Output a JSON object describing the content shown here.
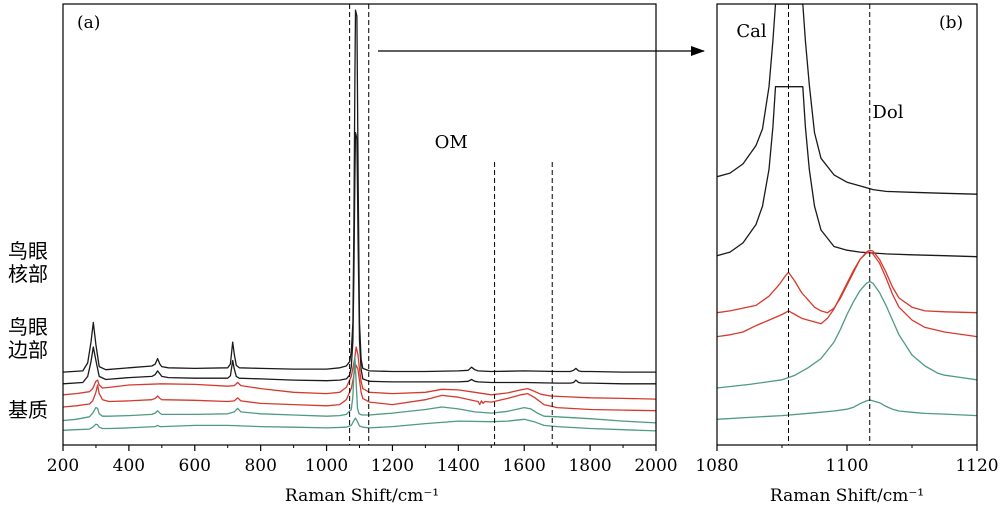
{
  "colors": {
    "core": "#1a1a1a",
    "rim": "#d63a2e",
    "matrix": "#4e9a84",
    "frame": "#000000",
    "reference_line": "#000000"
  },
  "row_labels": [
    {
      "line1": "鸟眼",
      "line2": "核部"
    },
    {
      "line1": "鸟眼",
      "line2": "边部"
    },
    {
      "line1": "基质",
      "line2": ""
    }
  ],
  "chart_data": [
    {
      "panel": "(a)",
      "type": "line",
      "xlabel": "Raman Shift/cm⁻¹",
      "ylabel": "",
      "xlim": [
        200,
        2000
      ],
      "x_ticks": [
        200,
        400,
        600,
        800,
        1000,
        1200,
        1400,
        1600,
        1800,
        2000
      ],
      "y_ticks": [],
      "grid": false,
      "reference_lines": [
        1070,
        1128,
        1510,
        1685
      ],
      "annotations": [
        {
          "text": "OM",
          "x": 1600
        }
      ],
      "series_style": [
        "core",
        "core",
        "rim",
        "rim",
        "matrix",
        "matrix"
      ],
      "series": [
        {
          "x": [
            200,
            260,
            275,
            285,
            292,
            300,
            310,
            330,
            400,
            470,
            480,
            487,
            494,
            500,
            520,
            600,
            700,
            708,
            715,
            720,
            726,
            735,
            800,
            900,
            1000,
            1040,
            1060,
            1070,
            1075,
            1080,
            1083,
            1086,
            1088,
            1092,
            1096,
            1100,
            1105,
            1110,
            1130,
            1200,
            1300,
            1400,
            1430,
            1440,
            1450,
            1460,
            1500,
            1600,
            1700,
            1740,
            1750,
            1757,
            1765,
            1775,
            1800,
            1900,
            2000
          ],
          "y": [
            5.95,
            6.05,
            6.7,
            8.4,
            10.0,
            8.2,
            6.4,
            6.15,
            6.3,
            6.45,
            6.6,
            7.05,
            6.6,
            6.4,
            6.3,
            6.25,
            6.3,
            6.6,
            8.4,
            7.4,
            6.5,
            6.3,
            6.25,
            6.2,
            6.2,
            6.3,
            6.45,
            6.8,
            7.6,
            10.0,
            18.0,
            30.0,
            35.5,
            35.0,
            21.0,
            10.0,
            7.0,
            6.25,
            6.05,
            6.0,
            6.0,
            6.05,
            6.1,
            6.35,
            6.15,
            6.05,
            6.0,
            6.05,
            6.0,
            6.0,
            6.1,
            6.25,
            6.05,
            6.0,
            6.0,
            5.95,
            5.95
          ]
        },
        {
          "x": [
            200,
            260,
            275,
            285,
            292,
            300,
            310,
            330,
            400,
            470,
            480,
            487,
            494,
            500,
            520,
            600,
            700,
            708,
            715,
            720,
            726,
            735,
            800,
            900,
            1000,
            1040,
            1060,
            1070,
            1075,
            1080,
            1083,
            1086,
            1088,
            1092,
            1096,
            1100,
            1105,
            1110,
            1130,
            1200,
            1300,
            1400,
            1430,
            1440,
            1450,
            1460,
            1500,
            1600,
            1700,
            1740,
            1750,
            1757,
            1765,
            1775,
            1800,
            1900,
            2000
          ],
          "y": [
            5.0,
            5.1,
            5.6,
            6.8,
            8.0,
            6.9,
            5.6,
            5.35,
            5.5,
            5.6,
            5.75,
            6.05,
            5.8,
            5.6,
            5.5,
            5.45,
            5.45,
            5.65,
            6.9,
            6.2,
            5.6,
            5.45,
            5.4,
            5.3,
            5.25,
            5.3,
            5.4,
            5.7,
            6.4,
            8.5,
            14.0,
            22.0,
            25.5,
            25.0,
            16.0,
            8.5,
            6.2,
            5.4,
            5.2,
            5.15,
            5.15,
            5.15,
            5.2,
            5.35,
            5.2,
            5.15,
            5.1,
            5.1,
            5.05,
            5.05,
            5.1,
            5.3,
            5.1,
            5.05,
            5.05,
            5.0,
            5.0
          ]
        },
        {
          "x": [
            200,
            240,
            280,
            290,
            300,
            305,
            310,
            320,
            340,
            400,
            500,
            600,
            700,
            720,
            730,
            740,
            800,
            900,
            1000,
            1040,
            1060,
            1075,
            1085,
            1090,
            1095,
            1100,
            1105,
            1110,
            1130,
            1200,
            1300,
            1350,
            1400,
            1450,
            1500,
            1550,
            1590,
            1610,
            1625,
            1650,
            1680,
            1720,
            1800,
            1900,
            2000
          ],
          "y": [
            4.1,
            4.2,
            4.35,
            4.6,
            5.2,
            5.3,
            4.9,
            4.65,
            4.7,
            4.9,
            5.0,
            4.95,
            4.8,
            4.85,
            5.1,
            4.85,
            4.6,
            4.3,
            4.2,
            4.3,
            4.7,
            5.6,
            7.0,
            8.0,
            7.4,
            6.2,
            5.2,
            4.6,
            4.3,
            4.2,
            4.3,
            4.55,
            4.5,
            4.3,
            4.1,
            4.25,
            4.5,
            4.6,
            4.45,
            4.15,
            4.0,
            3.95,
            3.85,
            3.8,
            3.75
          ]
        },
        {
          "x": [
            200,
            240,
            280,
            290,
            300,
            305,
            310,
            320,
            340,
            400,
            470,
            480,
            487,
            494,
            500,
            600,
            700,
            720,
            730,
            740,
            800,
            900,
            1000,
            1040,
            1060,
            1075,
            1085,
            1090,
            1095,
            1100,
            1105,
            1110,
            1130,
            1200,
            1300,
            1350,
            1400,
            1450,
            1460,
            1465,
            1470,
            1475,
            1480,
            1500,
            1550,
            1590,
            1610,
            1630,
            1660,
            1700,
            1800,
            1900,
            2000
          ],
          "y": [
            3.1,
            3.2,
            3.35,
            3.6,
            4.3,
            4.9,
            4.2,
            3.7,
            3.55,
            3.6,
            3.7,
            3.8,
            4.0,
            3.8,
            3.7,
            3.65,
            3.55,
            3.6,
            3.85,
            3.6,
            3.4,
            3.3,
            3.2,
            3.3,
            3.7,
            4.6,
            6.0,
            6.5,
            6.2,
            5.3,
            4.3,
            3.8,
            3.5,
            3.3,
            3.7,
            4.05,
            3.9,
            3.6,
            3.55,
            3.3,
            3.6,
            3.4,
            3.55,
            3.5,
            3.8,
            4.1,
            4.2,
            3.9,
            3.3,
            3.05,
            2.9,
            2.85,
            2.8
          ]
        },
        {
          "x": [
            200,
            240,
            280,
            290,
            300,
            305,
            310,
            320,
            340,
            400,
            470,
            480,
            487,
            494,
            500,
            600,
            700,
            720,
            730,
            740,
            800,
            900,
            1000,
            1040,
            1060,
            1075,
            1080,
            1083,
            1086,
            1090,
            1094,
            1098,
            1102,
            1108,
            1130,
            1200,
            1300,
            1350,
            1400,
            1450,
            1500,
            1550,
            1600,
            1620,
            1640,
            1660,
            1700,
            1800,
            1900,
            2000
          ],
          "y": [
            2.0,
            2.1,
            2.3,
            2.6,
            3.05,
            3.0,
            2.55,
            2.35,
            2.35,
            2.4,
            2.5,
            2.6,
            2.8,
            2.6,
            2.5,
            2.5,
            2.55,
            2.7,
            3.0,
            2.7,
            2.55,
            2.45,
            2.35,
            2.4,
            2.5,
            2.9,
            4.0,
            5.8,
            7.2,
            5.0,
            3.0,
            2.6,
            2.5,
            2.45,
            2.45,
            2.6,
            2.9,
            3.1,
            2.95,
            2.7,
            2.6,
            2.75,
            3.05,
            2.95,
            2.6,
            2.35,
            2.3,
            2.15,
            1.95,
            1.8
          ]
        },
        {
          "x": [
            200,
            240,
            280,
            290,
            300,
            305,
            310,
            320,
            340,
            400,
            480,
            487,
            494,
            500,
            600,
            700,
            800,
            900,
            1000,
            1060,
            1075,
            1083,
            1088,
            1094,
            1100,
            1110,
            1130,
            1200,
            1300,
            1400,
            1500,
            1550,
            1600,
            1630,
            1660,
            1700,
            1800,
            1900,
            2000
          ],
          "y": [
            1.2,
            1.25,
            1.3,
            1.45,
            1.7,
            1.65,
            1.45,
            1.35,
            1.35,
            1.4,
            1.5,
            1.6,
            1.5,
            1.5,
            1.6,
            1.6,
            1.5,
            1.45,
            1.4,
            1.45,
            1.6,
            2.0,
            2.2,
            1.9,
            1.55,
            1.45,
            1.4,
            1.5,
            1.75,
            1.95,
            1.9,
            1.95,
            2.1,
            1.9,
            1.6,
            1.5,
            1.35,
            1.25,
            1.15
          ]
        }
      ]
    },
    {
      "panel": "(b)",
      "type": "line",
      "xlabel": "Raman Shift/cm⁻¹",
      "ylabel": "",
      "xlim": [
        1080,
        1120
      ],
      "x_ticks": [
        1080,
        1100,
        1120
      ],
      "y_ticks": [],
      "grid": false,
      "reference_lines": [
        1091,
        1103.5
      ],
      "annotations": [
        {
          "text": "Cal",
          "x": 1085.3
        },
        {
          "text": "Dol",
          "x": 1106.3
        }
      ],
      "series_style": [
        "core",
        "core",
        "rim",
        "rim",
        "matrix",
        "matrix"
      ],
      "series": [
        {
          "x": [
            1080,
            1082,
            1084,
            1086,
            1087,
            1088,
            1088.6,
            1089.0,
            1093.2,
            1093.6,
            1094.2,
            1095,
            1096,
            1098,
            1100,
            1102,
            1104,
            1106,
            1110,
            1115,
            1120
          ],
          "y": [
            14.6,
            14.8,
            15.3,
            16.3,
            17.2,
            19.5,
            22.0,
            24.0,
            24.0,
            22.0,
            19.6,
            17.0,
            15.6,
            14.7,
            14.3,
            14.1,
            13.9,
            13.8,
            13.75,
            13.7,
            13.65
          ]
        },
        {
          "x": [
            1080,
            1082,
            1084,
            1086,
            1087,
            1088,
            1088.6,
            1089.0,
            1093.2,
            1093.6,
            1094.2,
            1095,
            1096,
            1098,
            1100,
            1102,
            1104,
            1106,
            1110,
            1115,
            1120
          ],
          "y": [
            10.3,
            10.5,
            11.0,
            12.0,
            13.0,
            15.0,
            17.3,
            19.5,
            19.5,
            17.3,
            15.0,
            13.0,
            11.7,
            10.8,
            10.6,
            10.5,
            10.45,
            10.4,
            10.35,
            10.3,
            10.25
          ]
        },
        {
          "x": [
            1080,
            1082,
            1084,
            1086,
            1088,
            1089.5,
            1090.5,
            1091,
            1092,
            1093,
            1094,
            1095,
            1096,
            1097,
            1098,
            1099,
            1100,
            1101,
            1102,
            1103,
            1103.5,
            1104,
            1105,
            1106,
            1107,
            1108,
            1110,
            1112,
            1115,
            1120
          ],
          "y": [
            7.2,
            7.3,
            7.45,
            7.6,
            8.1,
            8.7,
            9.2,
            9.4,
            8.9,
            8.3,
            7.9,
            7.5,
            7.3,
            7.2,
            7.45,
            8.0,
            8.7,
            9.4,
            10.1,
            10.5,
            10.6,
            10.55,
            10.1,
            9.4,
            8.6,
            8.0,
            7.5,
            7.3,
            7.25,
            7.2
          ]
        },
        {
          "x": [
            1080,
            1082,
            1084,
            1086,
            1088,
            1090,
            1091,
            1092,
            1093,
            1094,
            1095,
            1096,
            1097,
            1098,
            1099,
            1100,
            1101,
            1102,
            1103,
            1103.5,
            1104,
            1105,
            1106,
            1107,
            1108,
            1110,
            1112,
            1115,
            1120
          ],
          "y": [
            5.9,
            6.0,
            6.15,
            6.5,
            6.8,
            7.1,
            7.3,
            7.1,
            6.9,
            6.8,
            6.7,
            6.6,
            6.9,
            7.4,
            8.1,
            8.8,
            9.5,
            10.1,
            10.45,
            10.5,
            10.4,
            9.9,
            9.1,
            8.2,
            7.5,
            6.8,
            6.4,
            6.15,
            5.9
          ]
        },
        {
          "x": [
            1080,
            1085,
            1090,
            1092,
            1094,
            1096,
            1098,
            1099,
            1100,
            1101,
            1102,
            1103,
            1103.5,
            1104,
            1105,
            1106,
            1107,
            1108,
            1110,
            1112,
            1114,
            1115,
            1117,
            1120
          ],
          "y": [
            3.1,
            3.3,
            3.55,
            3.8,
            4.2,
            4.7,
            5.6,
            6.3,
            7.1,
            7.8,
            8.4,
            8.8,
            8.9,
            8.8,
            8.3,
            7.6,
            6.8,
            6.0,
            4.9,
            4.3,
            3.9,
            3.8,
            3.7,
            3.55
          ]
        },
        {
          "x": [
            1080,
            1085,
            1090,
            1095,
            1098,
            1100,
            1101,
            1102,
            1103,
            1103.5,
            1104,
            1105,
            1106,
            1107,
            1108,
            1110,
            1112,
            1115,
            1120
          ],
          "y": [
            1.4,
            1.5,
            1.6,
            1.75,
            1.85,
            1.95,
            2.05,
            2.25,
            2.4,
            2.45,
            2.4,
            2.3,
            2.1,
            1.95,
            1.85,
            1.78,
            1.72,
            1.68,
            1.6
          ]
        }
      ]
    }
  ]
}
